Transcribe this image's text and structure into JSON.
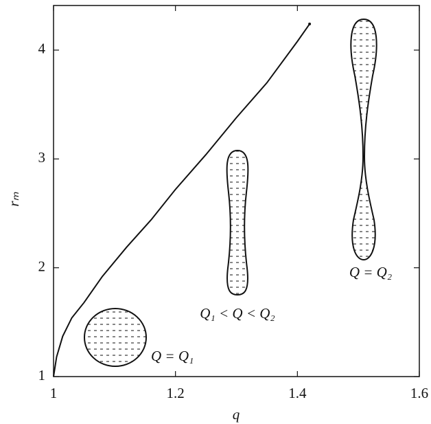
{
  "chart_data": {
    "type": "line",
    "x_label": "q",
    "y_label": "rₘ",
    "x": [
      1.0,
      1.005,
      1.015,
      1.03,
      1.05,
      1.08,
      1.12,
      1.16,
      1.2,
      1.25,
      1.3,
      1.35,
      1.4,
      1.42
    ],
    "series": [
      {
        "color": "#111111",
        "values": [
          1.0,
          1.18,
          1.37,
          1.54,
          1.68,
          1.92,
          2.19,
          2.44,
          2.72,
          3.04,
          3.38,
          3.7,
          4.08,
          4.24
        ]
      }
    ],
    "xlim": [
      1.0,
      1.6
    ],
    "xticks": [
      1,
      1.2,
      1.4,
      1.6
    ],
    "ylim": [
      1,
      4.41
    ],
    "yticks": [
      1,
      2,
      3,
      4
    ],
    "annotations": [
      "Q = Q₁",
      "Q₁ < Q < Q₂",
      "Q = Q₂"
    ]
  }
}
